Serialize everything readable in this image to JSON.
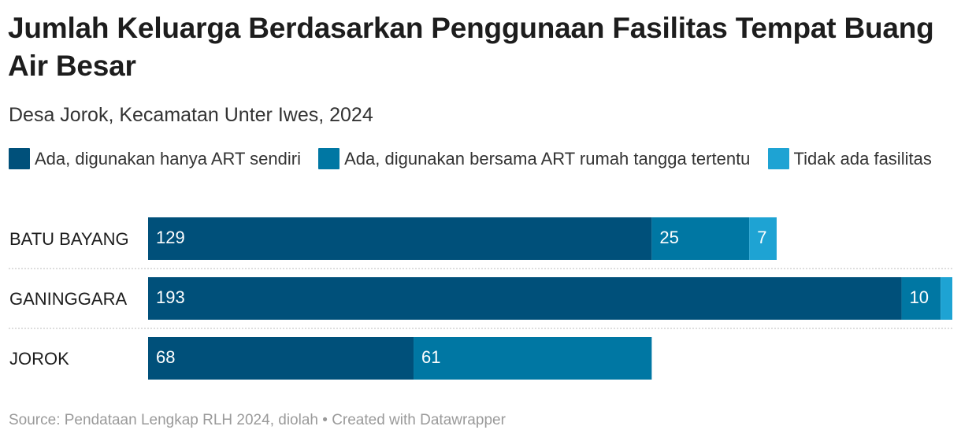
{
  "title": "Jumlah Keluarga Berdasarkan Penggunaan Fasilitas Tempat Buang Air Besar",
  "subtitle": "Desa Jorok, Kecamatan Unter Iwes, 2024",
  "footer": {
    "source": "Source: Pendataan Lengkap RLH 2024, diolah",
    "separator": "•",
    "credit": "Created with Datawrapper"
  },
  "colors": {
    "series1": "#00507a",
    "series2": "#0077a3",
    "series3": "#1ea3d3",
    "text_on_bar": "#ffffff",
    "divider": "#d4d4d4"
  },
  "chart_data": {
    "type": "bar",
    "orientation": "horizontal",
    "stacked": true,
    "title": "Jumlah Keluarga Berdasarkan Penggunaan Fasilitas Tempat Buang Air Besar",
    "subtitle": "Desa Jorok, Kecamatan Unter Iwes, 2024",
    "categories": [
      "BATU BAYANG",
      "GANINGGARA",
      "JOROK"
    ],
    "series": [
      {
        "name": "Ada, digunakan hanya ART sendiri",
        "values": [
          129,
          193,
          68
        ]
      },
      {
        "name": "Ada, digunakan bersama ART rumah tangga tertentu",
        "values": [
          25,
          10,
          61
        ]
      },
      {
        "name": "Tidak ada fasilitas",
        "values": [
          7,
          3,
          0
        ]
      }
    ],
    "value_labels": [
      [
        "129",
        "25",
        "7"
      ],
      [
        "193",
        "10",
        ""
      ],
      [
        "68",
        "61",
        ""
      ]
    ],
    "xlim": [
      0,
      206
    ],
    "legend_position": "top",
    "grid": false,
    "xlabel": "",
    "ylabel": ""
  }
}
